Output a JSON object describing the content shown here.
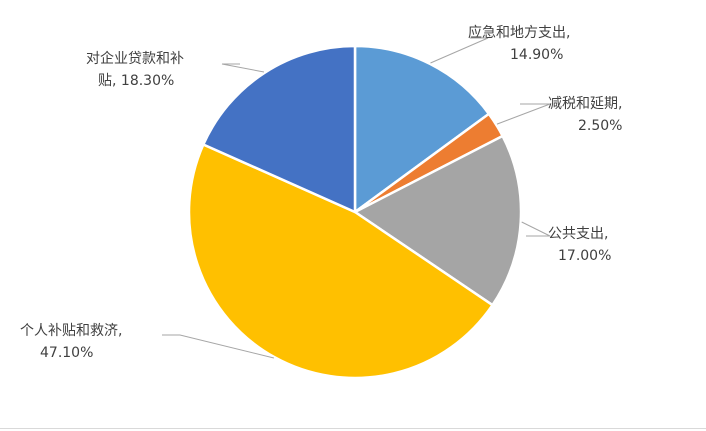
{
  "chart_data": {
    "type": "pie",
    "title": "",
    "slices": [
      {
        "label": "应急和地方支出,",
        "value": 14.9,
        "display": "14.90%",
        "color": "#5b9bd5"
      },
      {
        "label": "减税和延期,",
        "value": 2.5,
        "display": "2.50%",
        "color": "#ed7d31"
      },
      {
        "label": "公共支出,",
        "value": 17.0,
        "display": "17.00%",
        "color": "#a5a5a5"
      },
      {
        "label": "个人补贴和救济,",
        "value": 47.1,
        "display": "47.10%",
        "color": "#ffc000"
      },
      {
        "label": "对企业贷款和补贴,",
        "label_line1": "对企业贷款和补",
        "label_line2": "贴,",
        "value": 18.3,
        "display": "18.30%",
        "color": "#4472c4"
      }
    ],
    "legend": "none",
    "start_angle": "12 o'clock",
    "direction": "clockwise"
  }
}
